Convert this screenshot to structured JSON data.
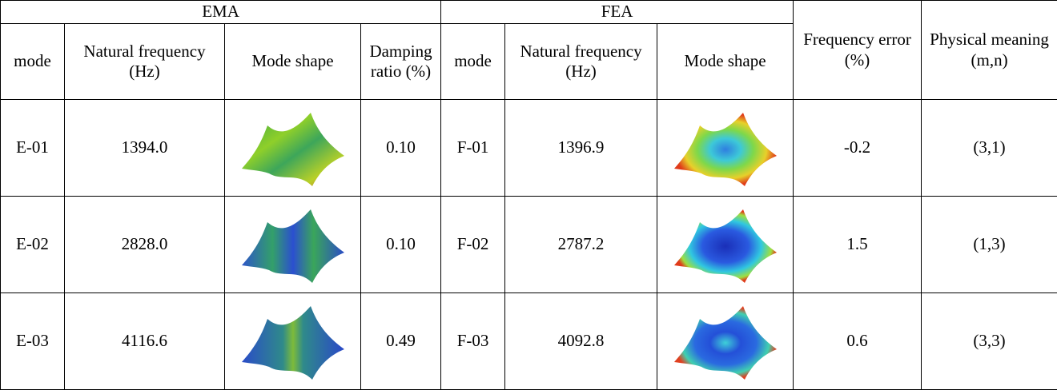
{
  "table": {
    "group_headers": [
      "EMA",
      "FEA"
    ],
    "headers": [
      "mode",
      "Natural frequency (Hz)",
      "Mode shape",
      "Damping ratio (%)",
      "mode",
      "Natural frequency (Hz)",
      "Mode shape",
      "Frequency error (%)",
      "Physical meaning (m,n)"
    ],
    "rows": [
      [
        "E-01",
        "1394.0",
        "0.10",
        "F-01",
        "1396.9",
        "-0.2",
        "(3,1)"
      ],
      [
        "E-02",
        "2828.0",
        "0.10",
        "F-02",
        "2787.2",
        "1.5",
        "(1,3)"
      ],
      [
        "E-03",
        "4116.6",
        "0.49",
        "F-03",
        "4092.8",
        "0.6",
        "(3,3)"
      ]
    ]
  }
}
